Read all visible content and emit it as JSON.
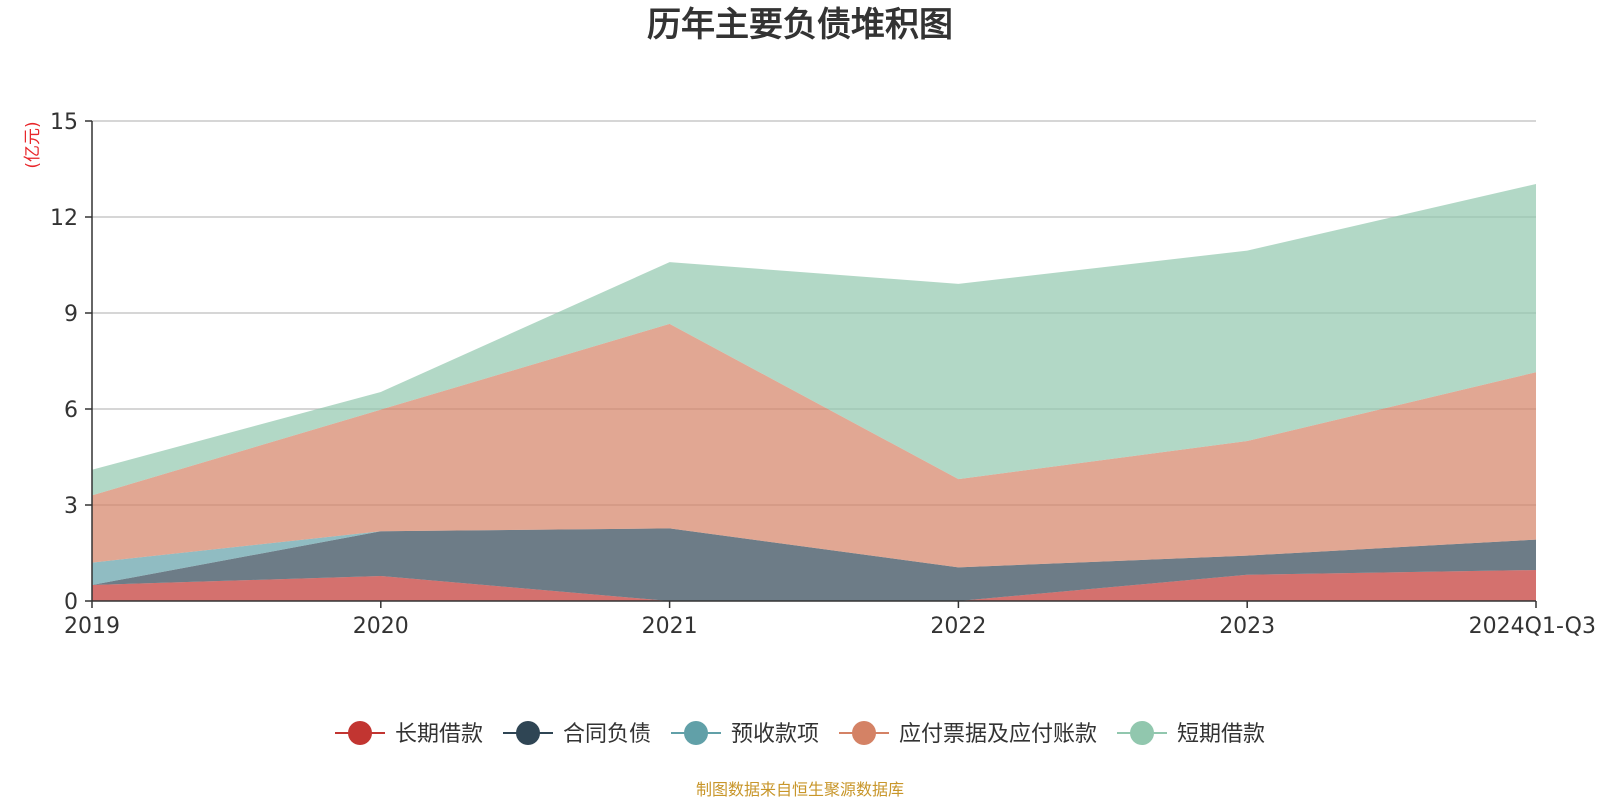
{
  "chart_data": {
    "type": "area",
    "stacked": true,
    "title": "历年主要负债堆积图",
    "unit_label": "(亿元)",
    "xlabel": "",
    "ylabel": "(亿元)",
    "ylim": [
      0,
      15
    ],
    "yticks": [
      0,
      3,
      6,
      9,
      12,
      15
    ],
    "ytick_labels": [
      "0",
      "3",
      "6",
      "9",
      "12",
      "15"
    ],
    "categories": [
      "2019",
      "2020",
      "2021",
      "2022",
      "2023",
      "2024Q1-Q3"
    ],
    "grid": true,
    "legend_position": "bottom",
    "series": [
      {
        "name": "长期借款",
        "color": "#c23531",
        "values": [
          0.5,
          0.78,
          0.0,
          0.0,
          0.82,
          0.97
        ]
      },
      {
        "name": "合同负债",
        "color": "#2f4554",
        "values": [
          0.0,
          1.4,
          2.27,
          1.05,
          0.6,
          0.95
        ]
      },
      {
        "name": "预收款项",
        "color": "#61a0a8",
        "values": [
          0.7,
          0.0,
          0.0,
          0.0,
          0.0,
          0.0
        ]
      },
      {
        "name": "应付票据及应付账款",
        "color": "#d48265",
        "values": [
          2.1,
          3.8,
          6.39,
          2.76,
          3.58,
          5.23
        ]
      },
      {
        "name": "短期借款",
        "color": "#91c7ae",
        "values": [
          0.8,
          0.55,
          1.93,
          6.1,
          5.95,
          5.88
        ]
      }
    ],
    "source": "制图数据来自恒生聚源数据库"
  }
}
